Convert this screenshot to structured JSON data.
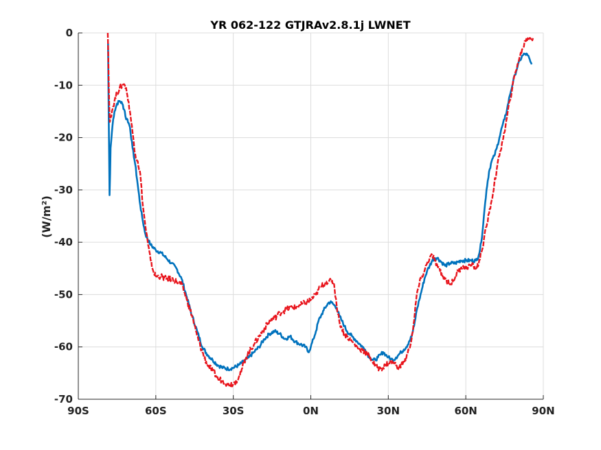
{
  "chart_data": {
    "type": "line",
    "title": "YR 062-122 GTJRAv2.8.1j LWNET",
    "xlabel": "",
    "ylabel": "(W/m²)",
    "xlim": [
      -90,
      90
    ],
    "ylim": [
      -70,
      0
    ],
    "grid": true,
    "xticks": [
      -90,
      -60,
      -30,
      0,
      30,
      60,
      90
    ],
    "xtick_labels": [
      "90S",
      "60S",
      "30S",
      "0N",
      "30N",
      "60N",
      "90N"
    ],
    "yticks": [
      0,
      -10,
      -20,
      -30,
      -40,
      -50,
      -60,
      -70
    ],
    "ytick_labels": [
      "0",
      "-10",
      "-20",
      "-30",
      "-40",
      "-50",
      "-60",
      "-70"
    ],
    "series": [
      {
        "color": "#0072bd",
        "style": "solid",
        "x": [
          -78.5,
          -78.3,
          -78.1,
          -77.9,
          -77.7,
          -77.5,
          -77,
          -76.5,
          -76,
          -75,
          -74,
          -73,
          -72,
          -71.5,
          -71,
          -70,
          -69,
          -68,
          -67,
          -66,
          -65,
          -64,
          -62,
          -60,
          -58,
          -56,
          -54,
          -52,
          -50,
          -48,
          -46,
          -44,
          -42,
          -40,
          -38,
          -36,
          -34,
          -32,
          -30,
          -28,
          -26,
          -24,
          -22,
          -20,
          -18,
          -16,
          -14,
          -12,
          -10,
          -8,
          -6,
          -4,
          -2,
          -1,
          0,
          1,
          2,
          3,
          4,
          5,
          6,
          7,
          8,
          9,
          10,
          11,
          12,
          13,
          14,
          15,
          16,
          17,
          18,
          19,
          20,
          21,
          22,
          23,
          24,
          25,
          26,
          27,
          28,
          29,
          30,
          31,
          32,
          33,
          34,
          35,
          36,
          37,
          38,
          39,
          40,
          41,
          42,
          43,
          44,
          45,
          46,
          47,
          48,
          49,
          50,
          52,
          54,
          56,
          58,
          60,
          62,
          64,
          65,
          66,
          67,
          68,
          69,
          70,
          71,
          72,
          73,
          74,
          75,
          76,
          77,
          78,
          79,
          80,
          81,
          82,
          83,
          84,
          85,
          85.5
        ],
        "y": [
          -2,
          -12,
          -22,
          -31,
          -27,
          -22,
          -19,
          -16.5,
          -15,
          -13.5,
          -13,
          -13.5,
          -15,
          -16.5,
          -16.5,
          -18,
          -22,
          -25,
          -29,
          -33,
          -36,
          -38.5,
          -40.5,
          -41.5,
          -42,
          -43,
          -44,
          -45,
          -47,
          -50.5,
          -54,
          -57,
          -60,
          -61.5,
          -62.5,
          -63.5,
          -64,
          -64.2,
          -64,
          -63.5,
          -62.8,
          -62,
          -61,
          -60,
          -58.5,
          -57.5,
          -57,
          -57.5,
          -58.5,
          -58,
          -59,
          -59.5,
          -60,
          -61,
          -60,
          -58.5,
          -57,
          -55,
          -54,
          -53,
          -52.2,
          -51.5,
          -51.5,
          -52,
          -52.5,
          -54,
          -55,
          -56,
          -57,
          -57.5,
          -58,
          -58.5,
          -59,
          -59.5,
          -60,
          -60.5,
          -61.5,
          -62,
          -62.5,
          -62.5,
          -62,
          -61.5,
          -61,
          -61.5,
          -62,
          -62.3,
          -62.5,
          -62,
          -61.5,
          -61,
          -60.5,
          -60,
          -59,
          -58,
          -56,
          -53,
          -51,
          -49,
          -47,
          -45.5,
          -44.5,
          -43.5,
          -43,
          -43,
          -43.5,
          -44.5,
          -44,
          -44,
          -43.5,
          -43.5,
          -43.5,
          -43.5,
          -42.5,
          -40,
          -35,
          -30,
          -26.5,
          -24.5,
          -23.5,
          -22,
          -20,
          -18,
          -16.5,
          -14.5,
          -12,
          -10,
          -8,
          -6.5,
          -5.2,
          -4.3,
          -4,
          -4.3,
          -5.5,
          -6
        ]
      },
      {
        "color": "#e8141c",
        "style": "dashed",
        "x": [
          -78.6,
          -78.4,
          -78.2,
          -78,
          -77.8,
          -77.5,
          -77,
          -76,
          -75,
          -74,
          -73,
          -72.5,
          -72,
          -71.5,
          -71,
          -70,
          -69,
          -68,
          -67,
          -66,
          -65,
          -64,
          -63,
          -62,
          -61,
          -60,
          -58,
          -56,
          -54,
          -52,
          -50,
          -48,
          -46,
          -44,
          -42,
          -40,
          -38,
          -36,
          -34,
          -32,
          -30,
          -29,
          -28,
          -27,
          -26,
          -25,
          -24,
          -22,
          -20,
          -18,
          -16,
          -14,
          -12,
          -10,
          -8,
          -6,
          -4,
          -2,
          0,
          2,
          3,
          4,
          5,
          6,
          7,
          8,
          9,
          10,
          11,
          12,
          13,
          14,
          15,
          16,
          17,
          18,
          19,
          20,
          21,
          22,
          23,
          24,
          25,
          26,
          27,
          28,
          29,
          30,
          31,
          32,
          33,
          34,
          35,
          36,
          37,
          38,
          39,
          40,
          41,
          42,
          43,
          44,
          45,
          46,
          47,
          48,
          49,
          50,
          51,
          52,
          53,
          54,
          55,
          56,
          57,
          58,
          59,
          60,
          61,
          62,
          63,
          64,
          65,
          66,
          67,
          68,
          69,
          70,
          71,
          72,
          73,
          74,
          75,
          76,
          77,
          78,
          79,
          80,
          81,
          82,
          83,
          84,
          85,
          86
        ],
        "y": [
          0,
          -4,
          -10,
          -14,
          -17,
          -16,
          -15,
          -13,
          -11.5,
          -10.5,
          -10,
          -9.8,
          -10,
          -10.5,
          -12,
          -15,
          -19,
          -23,
          -24.5,
          -27,
          -33,
          -37,
          -40.5,
          -43.5,
          -45.5,
          -46.5,
          -46.5,
          -47,
          -47,
          -47.5,
          -48,
          -51,
          -54,
          -58,
          -61,
          -63.5,
          -64.5,
          -66,
          -66.5,
          -67.2,
          -67,
          -66.5,
          -66,
          -65,
          -63,
          -62,
          -61,
          -59.5,
          -58,
          -56.5,
          -55,
          -54.5,
          -53.5,
          -53,
          -52.5,
          -52.5,
          -52,
          -51.5,
          -51,
          -50,
          -49,
          -48.5,
          -48,
          -47.5,
          -47.5,
          -47.5,
          -48,
          -52,
          -55,
          -56.5,
          -57.5,
          -58,
          -58.5,
          -59,
          -59.5,
          -60,
          -60.5,
          -60.5,
          -61,
          -61.5,
          -62,
          -63,
          -63.5,
          -64,
          -64,
          -64,
          -63.5,
          -63,
          -63,
          -63,
          -63.5,
          -64,
          -63.5,
          -63,
          -62,
          -60.5,
          -58.5,
          -55,
          -50,
          -48,
          -46.5,
          -45.5,
          -44,
          -43,
          -42.5,
          -43.5,
          -44.5,
          -45.5,
          -46.5,
          -47,
          -47.5,
          -48,
          -47.5,
          -46.5,
          -45.5,
          -45,
          -44.5,
          -45,
          -44.5,
          -44.5,
          -44.5,
          -45,
          -44,
          -42,
          -39.5,
          -37,
          -34.5,
          -32,
          -29,
          -26,
          -23.5,
          -21,
          -19,
          -16,
          -13,
          -10.5,
          -8,
          -6,
          -4.5,
          -3,
          -1.5,
          -1,
          -1,
          -1
        ]
      }
    ]
  }
}
